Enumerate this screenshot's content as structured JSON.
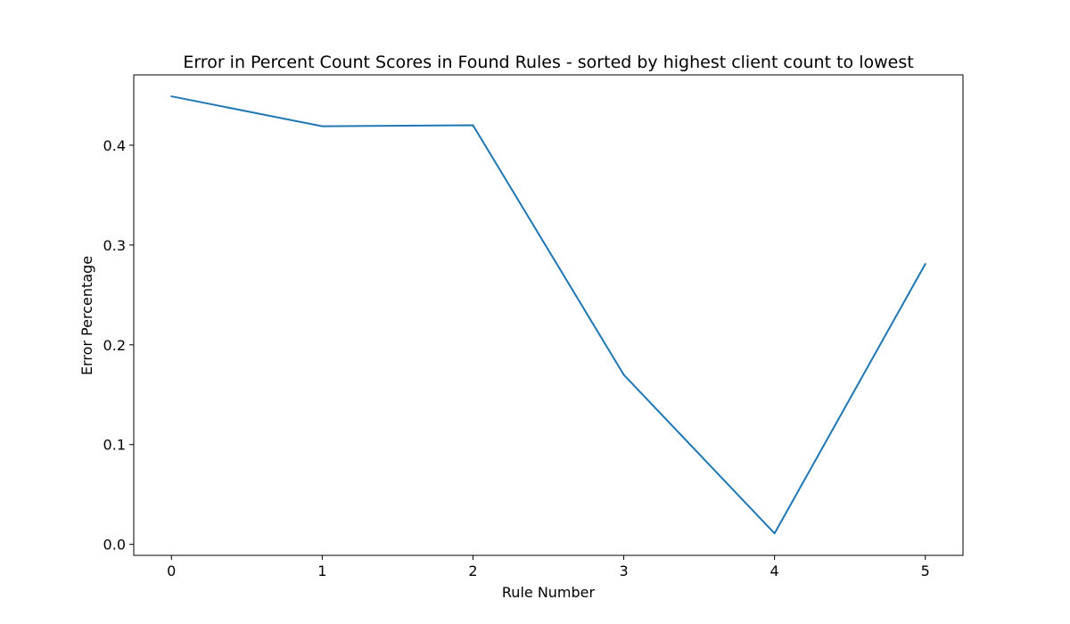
{
  "chart_data": {
    "type": "line",
    "title": "Error in Percent Count Scores in Found Rules - sorted by highest client count to lowest",
    "xlabel": "Rule Number",
    "ylabel": "Error Percentage",
    "x": [
      0,
      1,
      2,
      3,
      4,
      5
    ],
    "series": [
      {
        "values": [
          0.449,
          0.419,
          0.42,
          0.17,
          0.011,
          0.281
        ],
        "color": "#1f77b4"
      }
    ],
    "xticks": [
      "0",
      "1",
      "2",
      "3",
      "4",
      "5"
    ],
    "yticks": [
      "0.0",
      "0.1",
      "0.2",
      "0.3",
      "0.4"
    ],
    "ytick_values": [
      0.0,
      0.1,
      0.2,
      0.3,
      0.4
    ],
    "xlim": [
      -0.25,
      5.25
    ],
    "ylim": [
      -0.011,
      0.4705
    ],
    "grid": false,
    "legend": "none"
  }
}
